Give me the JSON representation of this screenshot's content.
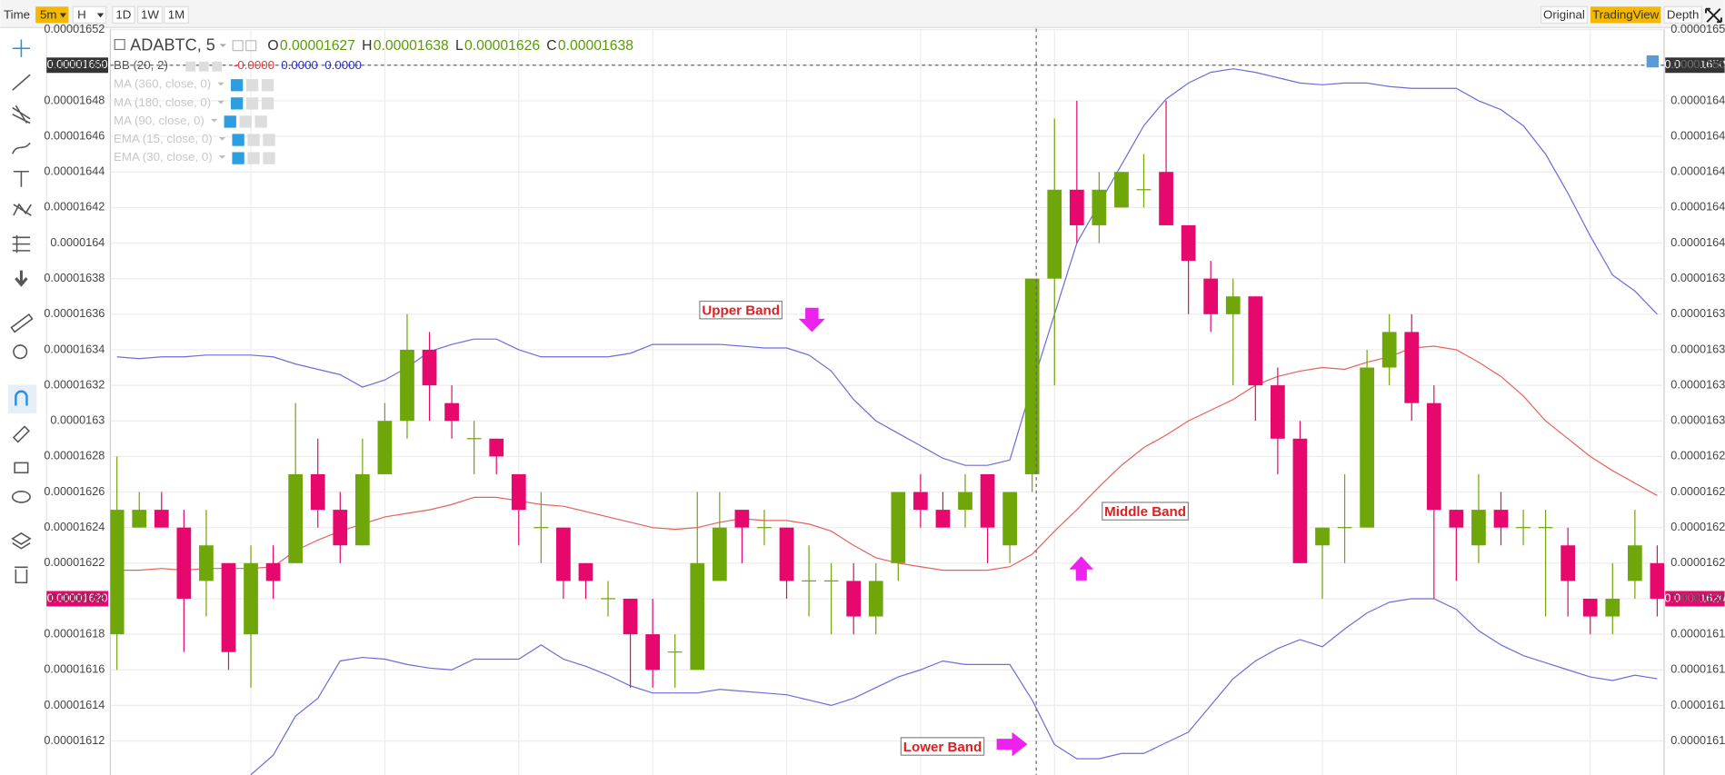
{
  "toolbar": {
    "intervals": [
      "Time",
      "5m",
      "H",
      "1D",
      "1W",
      "1M"
    ],
    "views": [
      "Original",
      "TradingView",
      "Depth"
    ]
  },
  "chart_data": {
    "type": "candlestick",
    "symbol": "ADABTC, 5",
    "ohlc": [
      {
        "label": "O",
        "value": 1.627e-05
      },
      {
        "label": "H",
        "value": 1.638e-05
      },
      {
        "label": "L",
        "value": 1.626e-05
      },
      {
        "label": "C",
        "value": 1.638e-05
      }
    ],
    "bb": {
      "label": "BB (20, 2)",
      "values": [
        "-0.0000",
        "0.0000",
        "0.0000"
      ]
    },
    "indicators": [
      "MA (360, close, 0)",
      "MA (180, close, 0)",
      "MA (90, close, 0)",
      "EMA (15, close, 0)",
      "EMA (30, close, 0)"
    ],
    "annotations": [
      "Upper Band",
      "Middle Band",
      "Lower Band"
    ],
    "ylim": [
      1.61e-05,
      1.653e-05
    ],
    "yticks": [
      1.612e-05,
      1.614e-05,
      1.616e-05,
      1.618e-05,
      1.62e-05,
      1.622e-05,
      1.624e-05,
      1.626e-05,
      1.628e-05,
      1.63e-05,
      1.632e-05,
      1.634e-05,
      1.636e-05,
      1.638e-05,
      1.64e-05,
      1.642e-05,
      1.644e-05,
      1.646e-05,
      1.648e-05,
      1.65e-05,
      1.652e-05
    ],
    "crosshair": {
      "value": 1.65e-05,
      "label": "0.00001650"
    },
    "last_price": {
      "value": 1.62e-05,
      "label": "0.00001620"
    },
    "grid": true,
    "up_color": "#6fa60a",
    "down_color": "#e6086d",
    "band_color": "#6c6cdc",
    "middle_color": "#e8605a",
    "candles": {
      "open": [
        1.618e-05,
        1.624e-05,
        1.625e-05,
        1.624e-05,
        1.621e-05,
        1.622e-05,
        1.618e-05,
        1.622e-05,
        1.622e-05,
        1.627e-05,
        1.625e-05,
        1.623e-05,
        1.627e-05,
        1.63e-05,
        1.634e-05,
        1.631e-05,
        1.629e-05,
        1.629e-05,
        1.627e-05,
        1.624e-05,
        1.624e-05,
        1.622e-05,
        1.62e-05,
        1.62e-05,
        1.618e-05,
        1.617e-05,
        1.616e-05,
        1.621e-05,
        1.625e-05,
        1.624e-05,
        1.624e-05,
        1.621e-05,
        1.621e-05,
        1.621e-05,
        1.619e-05,
        1.622e-05,
        1.626e-05,
        1.625e-05,
        1.625e-05,
        1.627e-05,
        1.623e-05,
        1.627e-05,
        1.638e-05,
        1.643e-05,
        1.641e-05,
        1.642e-05,
        1.643e-05,
        1.644e-05,
        1.641e-05,
        1.638e-05,
        1.636e-05,
        1.637e-05,
        1.632e-05,
        1.629e-05,
        1.623e-05,
        1.624e-05,
        1.624e-05,
        1.633e-05,
        1.635e-05,
        1.631e-05,
        1.625e-05,
        1.623e-05,
        1.625e-05,
        1.624e-05,
        1.624e-05,
        1.623e-05,
        1.62e-05,
        1.619e-05,
        1.621e-05,
        1.622e-05
      ],
      "high": [
        1.628e-05,
        1.626e-05,
        1.626e-05,
        1.625e-05,
        1.625e-05,
        1.622e-05,
        1.623e-05,
        1.623e-05,
        1.631e-05,
        1.629e-05,
        1.626e-05,
        1.629e-05,
        1.631e-05,
        1.636e-05,
        1.635e-05,
        1.632e-05,
        1.63e-05,
        1.629e-05,
        1.627e-05,
        1.626e-05,
        1.624e-05,
        1.622e-05,
        1.621e-05,
        1.62e-05,
        1.62e-05,
        1.618e-05,
        1.626e-05,
        1.626e-05,
        1.625e-05,
        1.625e-05,
        1.624e-05,
        1.623e-05,
        1.622e-05,
        1.622e-05,
        1.622e-05,
        1.626e-05,
        1.627e-05,
        1.626e-05,
        1.627e-05,
        1.627e-05,
        1.626e-05,
        1.638e-05,
        1.647e-05,
        1.648e-05,
        1.644e-05,
        1.644e-05,
        1.645e-05,
        1.648e-05,
        1.641e-05,
        1.639e-05,
        1.638e-05,
        1.637e-05,
        1.633e-05,
        1.63e-05,
        1.624e-05,
        1.627e-05,
        1.634e-05,
        1.636e-05,
        1.636e-05,
        1.632e-05,
        1.625e-05,
        1.627e-05,
        1.626e-05,
        1.625e-05,
        1.625e-05,
        1.624e-05,
        1.62e-05,
        1.622e-05,
        1.625e-05,
        1.623e-05
      ],
      "low": [
        1.616e-05,
        1.624e-05,
        1.624e-05,
        1.617e-05,
        1.619e-05,
        1.616e-05,
        1.615e-05,
        1.62e-05,
        1.622e-05,
        1.624e-05,
        1.622e-05,
        1.623e-05,
        1.627e-05,
        1.629e-05,
        1.63e-05,
        1.629e-05,
        1.627e-05,
        1.627e-05,
        1.623e-05,
        1.622e-05,
        1.62e-05,
        1.62e-05,
        1.619e-05,
        1.615e-05,
        1.615e-05,
        1.615e-05,
        1.616e-05,
        1.621e-05,
        1.622e-05,
        1.623e-05,
        1.62e-05,
        1.619e-05,
        1.618e-05,
        1.618e-05,
        1.618e-05,
        1.621e-05,
        1.624e-05,
        1.624e-05,
        1.624e-05,
        1.622e-05,
        1.622e-05,
        1.626e-05,
        1.632e-05,
        1.64e-05,
        1.64e-05,
        1.642e-05,
        1.642e-05,
        1.641e-05,
        1.636e-05,
        1.635e-05,
        1.632e-05,
        1.63e-05,
        1.627e-05,
        1.622e-05,
        1.62e-05,
        1.622e-05,
        1.624e-05,
        1.632e-05,
        1.63e-05,
        1.62e-05,
        1.621e-05,
        1.622e-05,
        1.623e-05,
        1.623e-05,
        1.619e-05,
        1.619e-05,
        1.618e-05,
        1.618e-05,
        1.62e-05,
        1.619e-05
      ],
      "close": [
        1.625e-05,
        1.625e-05,
        1.624e-05,
        1.62e-05,
        1.623e-05,
        1.617e-05,
        1.622e-05,
        1.621e-05,
        1.627e-05,
        1.625e-05,
        1.623e-05,
        1.627e-05,
        1.63e-05,
        1.634e-05,
        1.632e-05,
        1.63e-05,
        1.629e-05,
        1.628e-05,
        1.625e-05,
        1.624e-05,
        1.621e-05,
        1.621e-05,
        1.62e-05,
        1.618e-05,
        1.616e-05,
        1.617e-05,
        1.622e-05,
        1.624e-05,
        1.624e-05,
        1.624e-05,
        1.621e-05,
        1.621e-05,
        1.621e-05,
        1.619e-05,
        1.621e-05,
        1.626e-05,
        1.625e-05,
        1.624e-05,
        1.626e-05,
        1.624e-05,
        1.626e-05,
        1.638e-05,
        1.643e-05,
        1.641e-05,
        1.643e-05,
        1.644e-05,
        1.643e-05,
        1.641e-05,
        1.639e-05,
        1.636e-05,
        1.637e-05,
        1.632e-05,
        1.629e-05,
        1.622e-05,
        1.624e-05,
        1.624e-05,
        1.633e-05,
        1.635e-05,
        1.631e-05,
        1.625e-05,
        1.624e-05,
        1.625e-05,
        1.624e-05,
        1.624e-05,
        1.624e-05,
        1.621e-05,
        1.619e-05,
        1.62e-05,
        1.623e-05,
        1.62e-05
      ]
    },
    "bands": {
      "upper": [
        1.6336e-05,
        1.6335e-05,
        1.6336e-05,
        1.6336e-05,
        1.6337e-05,
        1.6337e-05,
        1.6337e-05,
        1.6336e-05,
        1.6332e-05,
        1.6329e-05,
        1.6326e-05,
        1.6319e-05,
        1.6323e-05,
        1.633e-05,
        1.6339e-05,
        1.6343e-05,
        1.6346e-05,
        1.6346e-05,
        1.634e-05,
        1.6336e-05,
        1.6336e-05,
        1.6336e-05,
        1.6336e-05,
        1.6338e-05,
        1.6343e-05,
        1.6343e-05,
        1.6343e-05,
        1.6343e-05,
        1.6342e-05,
        1.6341e-05,
        1.6341e-05,
        1.6337e-05,
        1.6328e-05,
        1.6312e-05,
        1.63e-05,
        1.6293e-05,
        1.6286e-05,
        1.6279e-05,
        1.6275e-05,
        1.6275e-05,
        1.6278e-05,
        1.632e-05,
        1.636e-05,
        1.64e-05,
        1.6422e-05,
        1.6444e-05,
        1.6466e-05,
        1.6481e-05,
        1.649e-05,
        1.6496e-05,
        1.6498e-05,
        1.6496e-05,
        1.6493e-05,
        1.649e-05,
        1.6489e-05,
        1.649e-05,
        1.649e-05,
        1.6488e-05,
        1.6487e-05,
        1.6487e-05,
        1.6487e-05,
        1.648e-05,
        1.6475e-05,
        1.6466e-05,
        1.645e-05,
        1.6428e-05,
        1.6404e-05,
        1.6382e-05,
        1.6373e-05,
        1.636e-05
      ],
      "middle": [
        1.6216e-05,
        1.6216e-05,
        1.6217e-05,
        1.6216e-05,
        1.6217e-05,
        1.6217e-05,
        1.6217e-05,
        1.6218e-05,
        1.6227e-05,
        1.6233e-05,
        1.6238e-05,
        1.6242e-05,
        1.6246e-05,
        1.6248e-05,
        1.625e-05,
        1.6253e-05,
        1.6257e-05,
        1.6257e-05,
        1.6255e-05,
        1.6253e-05,
        1.6252e-05,
        1.6249e-05,
        1.6246e-05,
        1.6243e-05,
        1.624e-05,
        1.6239e-05,
        1.624e-05,
        1.6243e-05,
        1.6245e-05,
        1.6244e-05,
        1.6244e-05,
        1.6242e-05,
        1.6238e-05,
        1.623e-05,
        1.6223e-05,
        1.622e-05,
        1.6218e-05,
        1.6216e-05,
        1.6216e-05,
        1.6216e-05,
        1.6218e-05,
        1.6225e-05,
        1.6238e-05,
        1.625e-05,
        1.6263e-05,
        1.6275e-05,
        1.6285e-05,
        1.6292e-05,
        1.63e-05,
        1.6306e-05,
        1.6312e-05,
        1.632e-05,
        1.6325e-05,
        1.6328e-05,
        1.633e-05,
        1.6329e-05,
        1.6333e-05,
        1.6336e-05,
        1.6341e-05,
        1.6342e-05,
        1.634e-05,
        1.6333e-05,
        1.6325e-05,
        1.6314e-05,
        1.63e-05,
        1.629e-05,
        1.628e-05,
        1.6272e-05,
        1.6265e-05,
        1.6258e-05
      ],
      "lower": [
        null,
        null,
        null,
        null,
        null,
        null,
        1.6101e-05,
        1.6112e-05,
        1.6134e-05,
        1.6144e-05,
        1.6165e-05,
        1.6167e-05,
        1.6166e-05,
        1.6163e-05,
        1.6161e-05,
        1.616e-05,
        1.6166e-05,
        1.6166e-05,
        1.6166e-05,
        1.6174e-05,
        1.6166e-05,
        1.6162e-05,
        1.6157e-05,
        1.6151e-05,
        1.6147e-05,
        1.6147e-05,
        1.6147e-05,
        1.6149e-05,
        1.6148e-05,
        1.6147e-05,
        1.6146e-05,
        1.6143e-05,
        1.614e-05,
        1.6144e-05,
        1.615e-05,
        1.6156e-05,
        1.616e-05,
        1.6165e-05,
        1.6163e-05,
        1.6163e-05,
        1.6163e-05,
        1.6143e-05,
        1.6118e-05,
        1.611e-05,
        1.611e-05,
        1.6113e-05,
        1.6113e-05,
        1.6119e-05,
        1.6125e-05,
        1.614e-05,
        1.6155e-05,
        1.6165e-05,
        1.6172e-05,
        1.6177e-05,
        1.6173e-05,
        1.6183e-05,
        1.6192e-05,
        1.6198e-05,
        1.62e-05,
        1.62e-05,
        1.6194e-05,
        1.6182e-05,
        1.6174e-05,
        1.6168e-05,
        1.6164e-05,
        1.616e-05,
        1.6156e-05,
        1.6154e-05,
        1.6157e-05,
        1.6155e-05
      ]
    }
  }
}
